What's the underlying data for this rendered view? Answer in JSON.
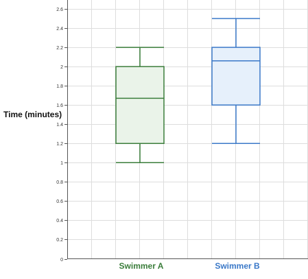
{
  "chart_data": {
    "type": "boxplot",
    "title": "",
    "xlabel": "",
    "ylabel": "Time (minutes)",
    "ylim": [
      0,
      2.6
    ],
    "y_ticks": [
      0,
      0.2,
      0.4,
      0.6,
      0.8,
      1,
      1.2,
      1.4,
      1.6,
      1.8,
      2,
      2.2,
      2.4,
      2.6
    ],
    "y_tick_labels": [
      "0",
      "0.2",
      "0.4",
      "0.6",
      "0.8",
      "1",
      "1.2",
      "1.4",
      "1.6",
      "1.8",
      "2",
      "2.2",
      "2.4",
      "2.6"
    ],
    "grid": true,
    "legend": "none",
    "categories": [
      "Swimmer A",
      "Swimmer B"
    ],
    "series": [
      {
        "name": "Swimmer A",
        "min": 1.0,
        "q1": 1.2,
        "median": 1.67,
        "q3": 2.0,
        "max": 2.2,
        "stroke_color": "#3a7d3a",
        "fill_color": "#eaf3e9"
      },
      {
        "name": "Swimmer B",
        "min": 1.2,
        "q1": 1.6,
        "median": 2.06,
        "q3": 2.2,
        "max": 2.5,
        "stroke_color": "#3a78c8",
        "fill_color": "#e6f0fb"
      }
    ]
  }
}
